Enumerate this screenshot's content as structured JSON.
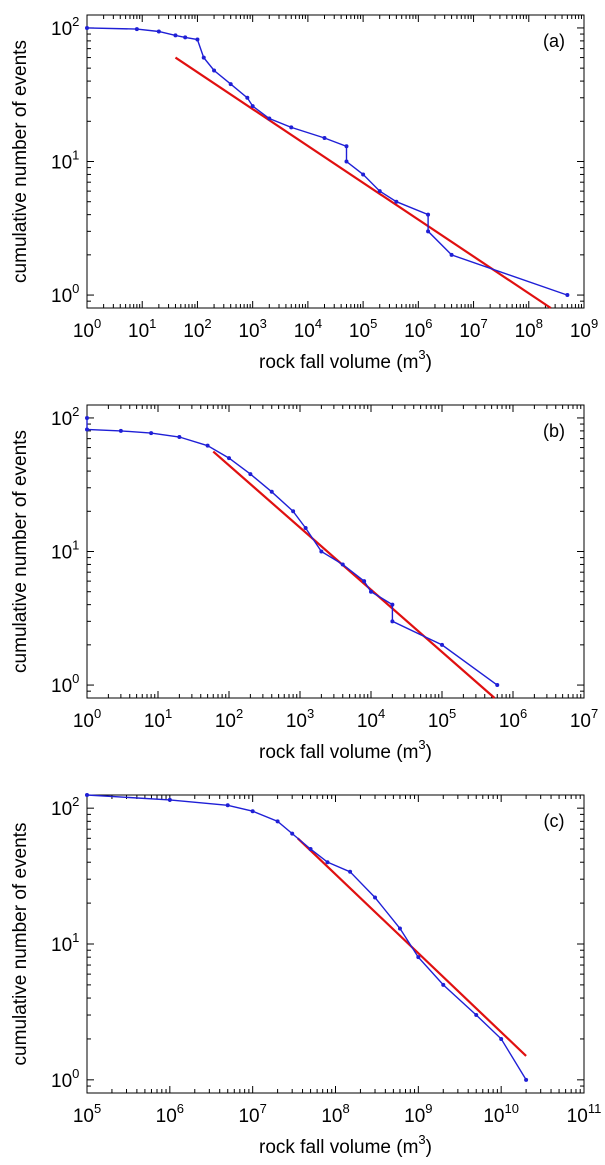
{
  "chart_data": [
    {
      "type": "scatter",
      "panel_label": "(a)",
      "xlabel": "rock fall volume (m",
      "xlabel_sup": "3",
      "xlabel_close": ")",
      "ylabel": "cumulative number of events",
      "x_scale": "log",
      "y_scale": "log",
      "xlim": [
        1,
        1000000000
      ],
      "ylim": [
        0.8,
        125
      ],
      "x_ticks": [
        {
          "base": "10",
          "exp": "0",
          "value": 1
        },
        {
          "base": "10",
          "exp": "1",
          "value": 10
        },
        {
          "base": "10",
          "exp": "2",
          "value": 100
        },
        {
          "base": "10",
          "exp": "3",
          "value": 1000
        },
        {
          "base": "10",
          "exp": "4",
          "value": 10000
        },
        {
          "base": "10",
          "exp": "5",
          "value": 100000
        },
        {
          "base": "10",
          "exp": "6",
          "value": 1000000
        },
        {
          "base": "10",
          "exp": "7",
          "value": 10000000
        },
        {
          "base": "10",
          "exp": "8",
          "value": 100000000
        },
        {
          "base": "10",
          "exp": "9",
          "value": 1000000000
        }
      ],
      "y_ticks": [
        {
          "base": "10",
          "exp": "0",
          "value": 1
        },
        {
          "base": "10",
          "exp": "1",
          "value": 10
        },
        {
          "base": "10",
          "exp": "2",
          "value": 100
        }
      ],
      "grid": false,
      "series": [
        {
          "color": "#1f1fd6",
          "points": [
            [
              1,
              100
            ],
            [
              8,
              98
            ],
            [
              20,
              94
            ],
            [
              40,
              88
            ],
            [
              60,
              85
            ],
            [
              100,
              82
            ],
            [
              130,
              60
            ],
            [
              200,
              48
            ],
            [
              400,
              38
            ],
            [
              800,
              30
            ],
            [
              1000,
              26
            ],
            [
              2000,
              21
            ],
            [
              5000,
              18
            ],
            [
              20000,
              15
            ],
            [
              50000,
              13
            ],
            [
              50000,
              10
            ],
            [
              100000,
              8
            ],
            [
              200000,
              6
            ],
            [
              400000,
              5
            ],
            [
              1500000,
              4
            ],
            [
              1500000,
              3
            ],
            [
              4000000,
              2
            ],
            [
              500000000,
              1
            ]
          ]
        }
      ],
      "fit_line": {
        "color": "#e01010",
        "points": [
          [
            40,
            60
          ],
          [
            250000000,
            0.8
          ]
        ]
      }
    },
    {
      "type": "scatter",
      "panel_label": "(b)",
      "xlabel": "rock fall volume (m",
      "xlabel_sup": "3",
      "xlabel_close": ")",
      "ylabel": "cumulative number of events",
      "x_scale": "log",
      "y_scale": "log",
      "xlim": [
        1,
        10000000
      ],
      "ylim": [
        0.8,
        125
      ],
      "x_ticks": [
        {
          "base": "10",
          "exp": "0",
          "value": 1
        },
        {
          "base": "10",
          "exp": "1",
          "value": 10
        },
        {
          "base": "10",
          "exp": "2",
          "value": 100
        },
        {
          "base": "10",
          "exp": "3",
          "value": 1000
        },
        {
          "base": "10",
          "exp": "4",
          "value": 10000
        },
        {
          "base": "10",
          "exp": "5",
          "value": 100000
        },
        {
          "base": "10",
          "exp": "6",
          "value": 1000000
        },
        {
          "base": "10",
          "exp": "7",
          "value": 10000000
        }
      ],
      "y_ticks": [
        {
          "base": "10",
          "exp": "0",
          "value": 1
        },
        {
          "base": "10",
          "exp": "1",
          "value": 10
        },
        {
          "base": "10",
          "exp": "2",
          "value": 100
        }
      ],
      "grid": false,
      "series": [
        {
          "color": "#1f1fd6",
          "points": [
            [
              1,
              100
            ],
            [
              1,
              82
            ],
            [
              3,
              80
            ],
            [
              8,
              77
            ],
            [
              20,
              72
            ],
            [
              50,
              62
            ],
            [
              100,
              50
            ],
            [
              200,
              38
            ],
            [
              400,
              28
            ],
            [
              800,
              20
            ],
            [
              1200,
              15
            ],
            [
              2000,
              10
            ],
            [
              4000,
              8
            ],
            [
              8000,
              6
            ],
            [
              10000,
              5
            ],
            [
              20000,
              4
            ],
            [
              20000,
              3
            ],
            [
              100000,
              2
            ],
            [
              600000,
              1
            ]
          ]
        }
      ],
      "fit_line": {
        "color": "#e01010",
        "points": [
          [
            60,
            56
          ],
          [
            550000,
            0.8
          ]
        ]
      }
    },
    {
      "type": "scatter",
      "panel_label": "(c)",
      "xlabel": "rock fall volume (m",
      "xlabel_sup": "3",
      "xlabel_close": ")",
      "ylabel": "cumulative number of events",
      "x_scale": "log",
      "y_scale": "log",
      "xlim": [
        100000,
        100000000000
      ],
      "ylim": [
        0.8,
        125
      ],
      "x_ticks": [
        {
          "base": "10",
          "exp": "5",
          "value": 100000
        },
        {
          "base": "10",
          "exp": "6",
          "value": 1000000
        },
        {
          "base": "10",
          "exp": "7",
          "value": 10000000
        },
        {
          "base": "10",
          "exp": "8",
          "value": 100000000
        },
        {
          "base": "10",
          "exp": "9",
          "value": 1000000000
        },
        {
          "base": "10",
          "exp": "10",
          "value": 10000000000
        },
        {
          "base": "10",
          "exp": "11",
          "value": 100000000000
        }
      ],
      "y_ticks": [
        {
          "base": "10",
          "exp": "0",
          "value": 1
        },
        {
          "base": "10",
          "exp": "1",
          "value": 10
        },
        {
          "base": "10",
          "exp": "2",
          "value": 100
        }
      ],
      "grid": false,
      "series": [
        {
          "color": "#1f1fd6",
          "points": [
            [
              100000,
              125
            ],
            [
              1000000,
              115
            ],
            [
              5000000,
              105
            ],
            [
              10000000,
              95
            ],
            [
              20000000,
              80
            ],
            [
              30000000,
              65
            ],
            [
              50000000,
              50
            ],
            [
              80000000,
              40
            ],
            [
              150000000,
              34
            ],
            [
              300000000,
              22
            ],
            [
              600000000,
              13
            ],
            [
              1000000000,
              8
            ],
            [
              2000000000,
              5
            ],
            [
              5000000000,
              3
            ],
            [
              10000000000,
              2
            ],
            [
              20000000000,
              1
            ]
          ]
        }
      ],
      "fit_line": {
        "color": "#e01010",
        "points": [
          [
            35000000,
            60
          ],
          [
            20000000000,
            1.5
          ]
        ]
      }
    }
  ]
}
